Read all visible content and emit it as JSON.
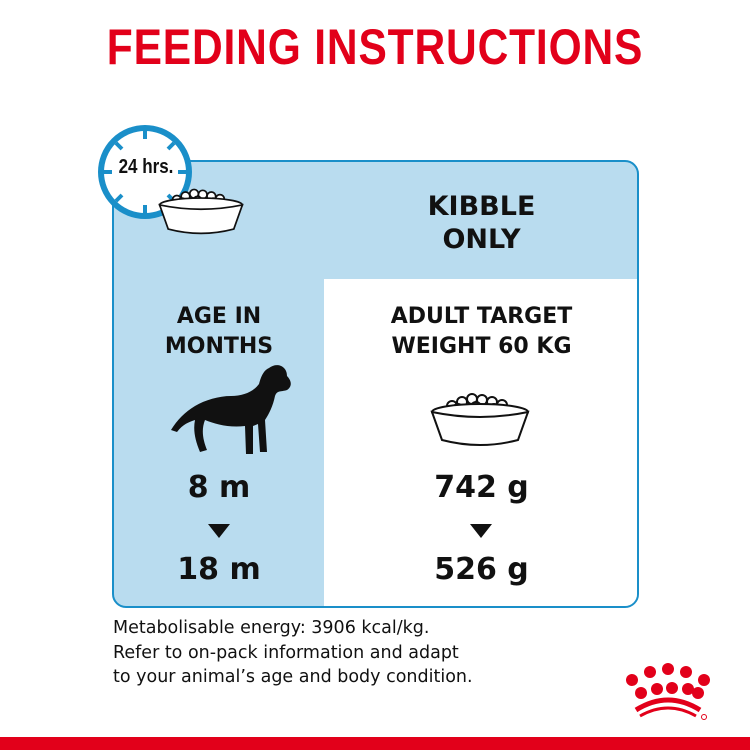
{
  "title": "FEEDING INSTRUCTIONS",
  "clock_label": "24 hrs.",
  "kibble_header": [
    "KIBBLE",
    "ONLY"
  ],
  "age_header": [
    "AGE IN",
    "MONTHS"
  ],
  "weight_header": [
    "ADULT TARGET",
    "WEIGHT 60 KG"
  ],
  "rows": {
    "age_from": "8 m",
    "age_to": "18 m",
    "grams_from": "742 g",
    "grams_to": "526 g"
  },
  "footer": [
    "Metabolisable energy: 3906 kcal/kg.",
    "Refer to on-pack information and adapt",
    "to your animal’s age and body condition."
  ],
  "colors": {
    "brand_red": "#e2001a",
    "accent_blue": "#1a8fc9",
    "panel_blue": "#b9dcef"
  },
  "icons": [
    "clock-icon",
    "food-bowl-icon",
    "dog-icon",
    "arrow-down-icon",
    "royal-canin-crown-logo"
  ],
  "logo_text": "Royal Canin"
}
